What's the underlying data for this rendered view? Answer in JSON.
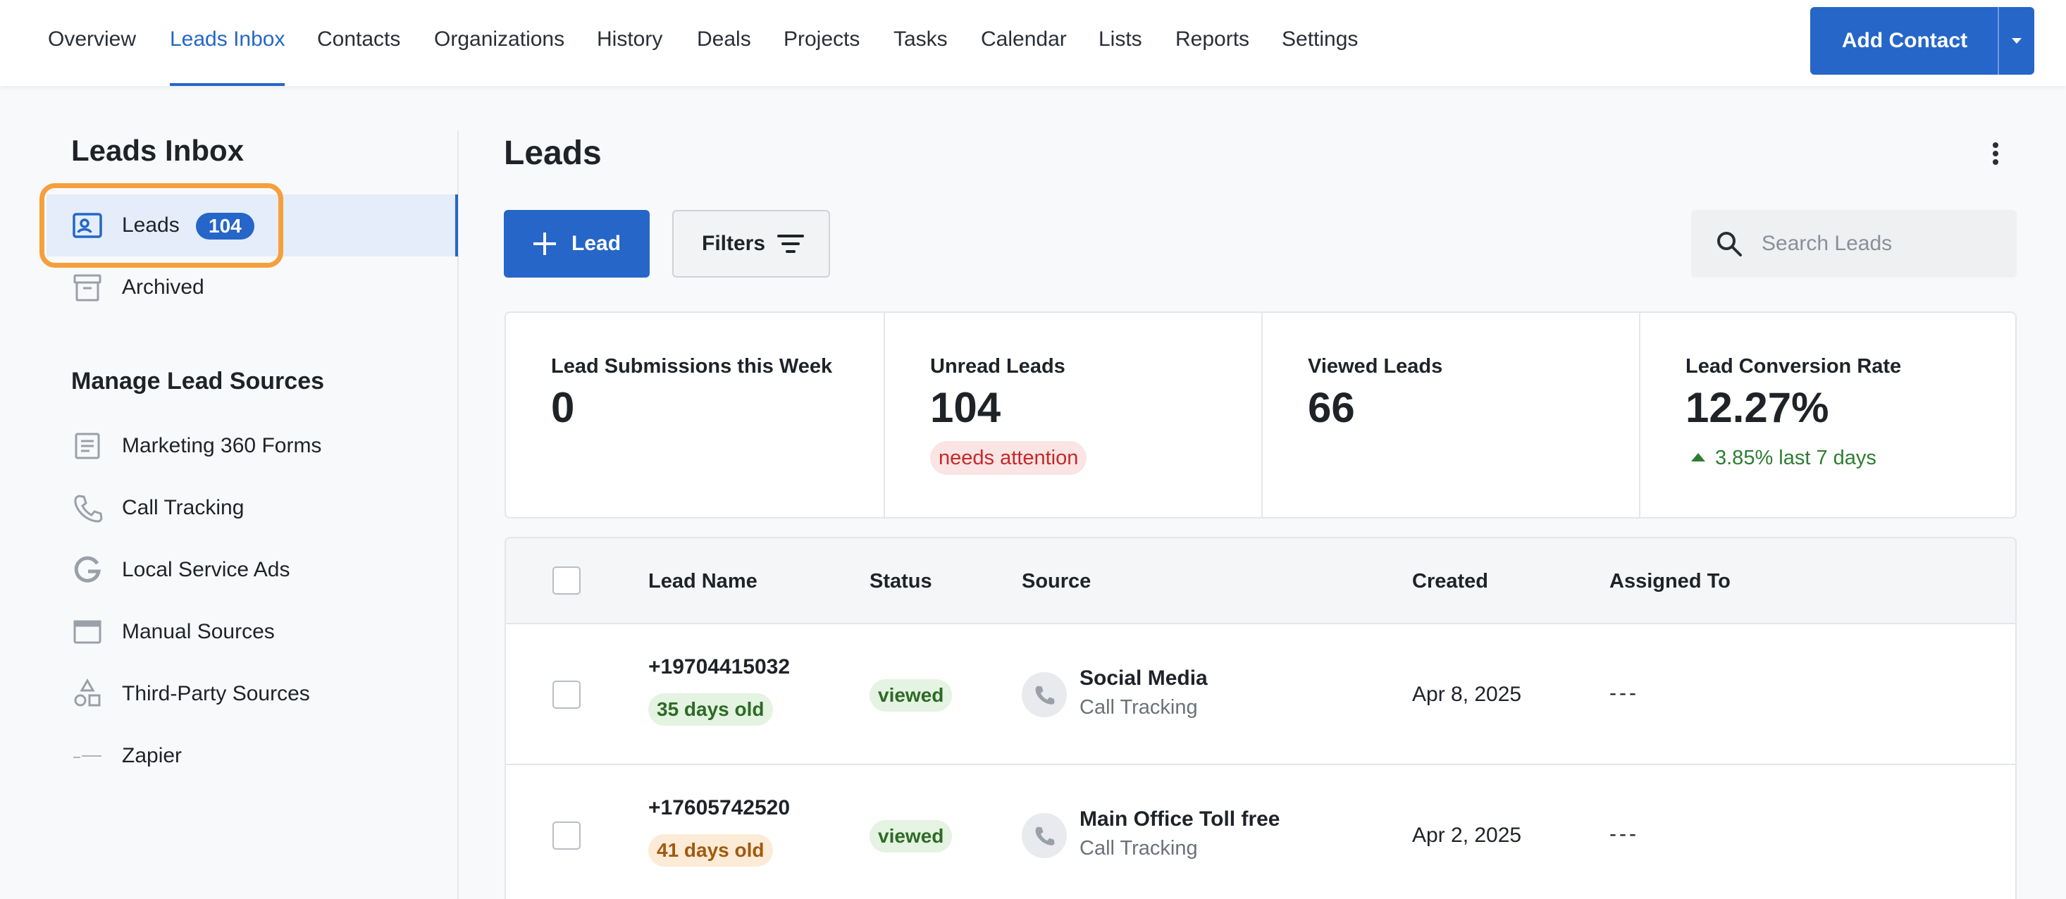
{
  "nav": {
    "items": [
      {
        "label": "Overview"
      },
      {
        "label": "Leads Inbox",
        "active": true
      },
      {
        "label": "Contacts"
      },
      {
        "label": "Organizations"
      },
      {
        "label": "History"
      },
      {
        "label": "Deals"
      },
      {
        "label": "Projects"
      },
      {
        "label": "Tasks"
      },
      {
        "label": "Calendar"
      },
      {
        "label": "Lists"
      },
      {
        "label": "Reports"
      },
      {
        "label": "Settings"
      }
    ],
    "add_contact_label": "Add Contact"
  },
  "sidebar": {
    "title": "Leads Inbox",
    "items": [
      {
        "label": "Leads",
        "badge": "104",
        "icon": "contact-card-icon",
        "active": true
      },
      {
        "label": "Archived",
        "icon": "archive-box-icon"
      }
    ],
    "sources_title": "Manage Lead Sources",
    "sources": [
      {
        "label": "Marketing 360 Forms",
        "icon": "form-icon"
      },
      {
        "label": "Call Tracking",
        "icon": "phone-icon"
      },
      {
        "label": "Local Service Ads",
        "icon": "google-g-icon"
      },
      {
        "label": "Manual Sources",
        "icon": "window-icon"
      },
      {
        "label": "Third-Party Sources",
        "icon": "shapes-icon"
      },
      {
        "label": "Zapier",
        "icon": "zapier-logo-icon"
      }
    ]
  },
  "main": {
    "title": "Leads",
    "add_lead_label": "Lead",
    "filters_label": "Filters",
    "search_placeholder": "Search Leads"
  },
  "stats": [
    {
      "title": "Lead Submissions this Week",
      "value": "0"
    },
    {
      "title": "Unread Leads",
      "value": "104",
      "tag": "needs attention"
    },
    {
      "title": "Viewed Leads",
      "value": "66"
    },
    {
      "title": "Lead Conversion Rate",
      "value": "12.27%",
      "trend": "3.85% last 7 days"
    }
  ],
  "table": {
    "columns": [
      "Lead Name",
      "Status",
      "Source",
      "Created",
      "Assigned To"
    ],
    "rows": [
      {
        "name": "+19704415032",
        "age": "35 days old",
        "age_color": "green",
        "status": "viewed",
        "source": "Social Media",
        "source_type": "Call Tracking",
        "created": "Apr 8, 2025",
        "assigned": "---"
      },
      {
        "name": "+17605742520",
        "age": "41 days old",
        "age_color": "orange",
        "status": "viewed",
        "source": "Main Office Toll free",
        "source_type": "Call Tracking",
        "created": "Apr 2, 2025",
        "assigned": "---"
      }
    ]
  },
  "colors": {
    "accent": "#2566c8",
    "highlight": "#f5a03c",
    "success": "#2e7d32",
    "danger": "#c62828"
  }
}
